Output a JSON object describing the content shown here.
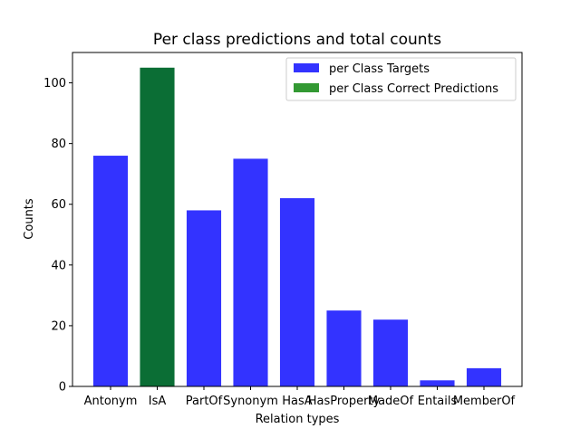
{
  "chart_data": {
    "type": "bar",
    "title": "Per class predictions and total counts",
    "xlabel": "Relation types",
    "ylabel": "Counts",
    "categories": [
      "Antonym",
      "IsA",
      "PartOf",
      "Synonym",
      "HasA",
      "HasProperty",
      "MadeOf",
      "Entails",
      "MemberOf"
    ],
    "ylim": [
      0,
      110
    ],
    "yticks": [
      0,
      20,
      40,
      60,
      80,
      100
    ],
    "grid": false,
    "legend_position": "top-right",
    "series": [
      {
        "name": "per Class Targets",
        "color": "#3333ff",
        "values": [
          76,
          0,
          58,
          75,
          62,
          25,
          22,
          2,
          6
        ]
      },
      {
        "name": "per Class Correct Predictions",
        "color": "#339933",
        "values": [
          0,
          105,
          0,
          0,
          0,
          0,
          0,
          0,
          0
        ]
      }
    ],
    "overlap_color": "#0b6e35"
  }
}
